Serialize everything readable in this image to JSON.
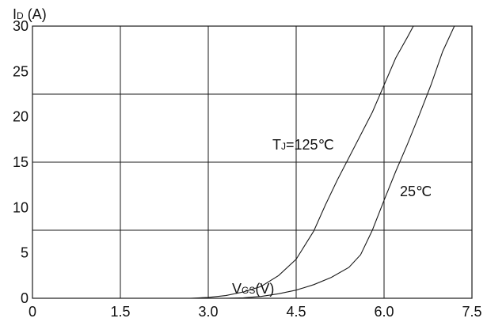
{
  "chart_data": {
    "type": "line",
    "y_unit_label": {
      "main": "I",
      "sub": "D",
      "rest": " (A)"
    },
    "x_unit_label": {
      "main": "V",
      "sub": "GS",
      "rest": "(V)"
    },
    "xlim": [
      0,
      7.5
    ],
    "ylim": [
      0,
      30
    ],
    "x_ticks": [
      "0",
      "1.5",
      "3.0",
      "4.5",
      "6.0",
      "7.5"
    ],
    "x_tick_values": [
      0,
      1.5,
      3.0,
      4.5,
      6.0,
      7.5
    ],
    "y_ticks": [
      "0",
      "5",
      "10",
      "15",
      "20",
      "25",
      "30"
    ],
    "y_tick_values": [
      0,
      5,
      10,
      15,
      20,
      25,
      30
    ],
    "grid": true,
    "series": [
      {
        "label": {
          "main": "T",
          "sub": "J",
          "rest": "=125℃"
        },
        "x": [
          2.7,
          3.0,
          3.3,
          3.6,
          3.9,
          4.2,
          4.5,
          4.8,
          5.0,
          5.2,
          5.4,
          5.6,
          5.8,
          6.0,
          6.2,
          6.4,
          6.5
        ],
        "y": [
          0,
          0.1,
          0.3,
          0.7,
          1.3,
          2.5,
          4.3,
          7.4,
          10.3,
          13.0,
          15.5,
          18.0,
          20.5,
          23.5,
          26.5,
          28.8,
          30
        ]
      },
      {
        "label": {
          "main": "25℃",
          "sub": "",
          "rest": ""
        },
        "x": [
          3.3,
          3.6,
          3.9,
          4.2,
          4.5,
          4.8,
          5.1,
          5.4,
          5.6,
          5.8,
          6.0,
          6.2,
          6.4,
          6.6,
          6.8,
          7.0,
          7.2
        ],
        "y": [
          0,
          0.05,
          0.2,
          0.5,
          0.9,
          1.5,
          2.3,
          3.4,
          4.8,
          7.5,
          10.8,
          14.0,
          17.0,
          20.2,
          23.5,
          27.2,
          30
        ]
      }
    ]
  }
}
